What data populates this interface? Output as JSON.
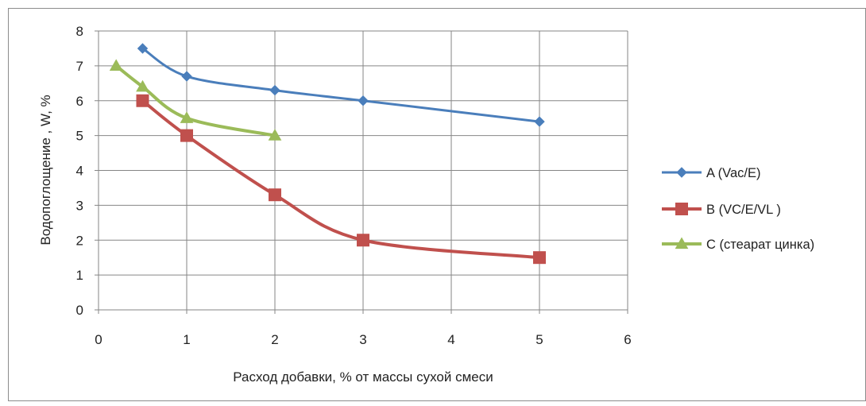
{
  "chart_data": {
    "type": "line",
    "title": "",
    "xlabel": "Расход добавки, % от массы сухой смеси",
    "ylabel": "Водопоглощение , W, %",
    "xlim": [
      0,
      6
    ],
    "ylim": [
      0,
      8
    ],
    "x_ticks": [
      "0",
      "1",
      "2",
      "3",
      "4",
      "5",
      "6"
    ],
    "y_ticks": [
      "0",
      "1",
      "2",
      "3",
      "4",
      "5",
      "6",
      "7",
      "8"
    ],
    "grid": true,
    "legend_position": "right",
    "series": [
      {
        "name": "A (Vac/E)",
        "color": "#4a7ebb",
        "marker": "diamond",
        "x": [
          0.5,
          1,
          2,
          3,
          5
        ],
        "y": [
          7.5,
          6.7,
          6.3,
          6.0,
          5.4
        ]
      },
      {
        "name": "B (VC/E/VL )",
        "color": "#c0504d",
        "marker": "square",
        "x": [
          0.5,
          1,
          2,
          3,
          5
        ],
        "y": [
          6.0,
          5.0,
          3.3,
          2.0,
          1.5
        ]
      },
      {
        "name": "C (стеарат цинка)",
        "color": "#9bbb59",
        "marker": "triangle",
        "x": [
          0.2,
          0.5,
          1,
          2
        ],
        "y": [
          7.0,
          6.4,
          5.5,
          5.0
        ]
      }
    ]
  }
}
